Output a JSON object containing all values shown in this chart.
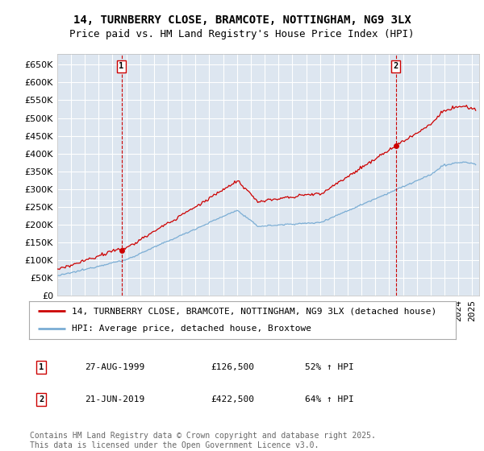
{
  "title": "14, TURNBERRY CLOSE, BRAMCOTE, NOTTINGHAM, NG9 3LX",
  "subtitle": "Price paid vs. HM Land Registry's House Price Index (HPI)",
  "ylim": [
    0,
    680000
  ],
  "yticks": [
    0,
    50000,
    100000,
    150000,
    200000,
    250000,
    300000,
    350000,
    400000,
    450000,
    500000,
    550000,
    600000,
    650000
  ],
  "xmin": 1995.0,
  "xmax": 2025.5,
  "plot_bg": "#dde6f0",
  "grid_color": "#ffffff",
  "transaction1": {
    "date": "27-AUG-1999",
    "year": 1999.65,
    "price": 126500,
    "label": "1",
    "pct": "52% ↑ HPI"
  },
  "transaction2": {
    "date": "21-JUN-2019",
    "year": 2019.47,
    "price": 422500,
    "label": "2",
    "pct": "64% ↑ HPI"
  },
  "red_line_color": "#cc0000",
  "blue_line_color": "#7aadd4",
  "legend_label_red": "14, TURNBERRY CLOSE, BRAMCOTE, NOTTINGHAM, NG9 3LX (detached house)",
  "legend_label_blue": "HPI: Average price, detached house, Broxtowe",
  "footer": "Contains HM Land Registry data © Crown copyright and database right 2025.\nThis data is licensed under the Open Government Licence v3.0.",
  "title_fontsize": 10,
  "subtitle_fontsize": 9,
  "tick_fontsize": 8,
  "legend_fontsize": 8,
  "footer_fontsize": 7
}
